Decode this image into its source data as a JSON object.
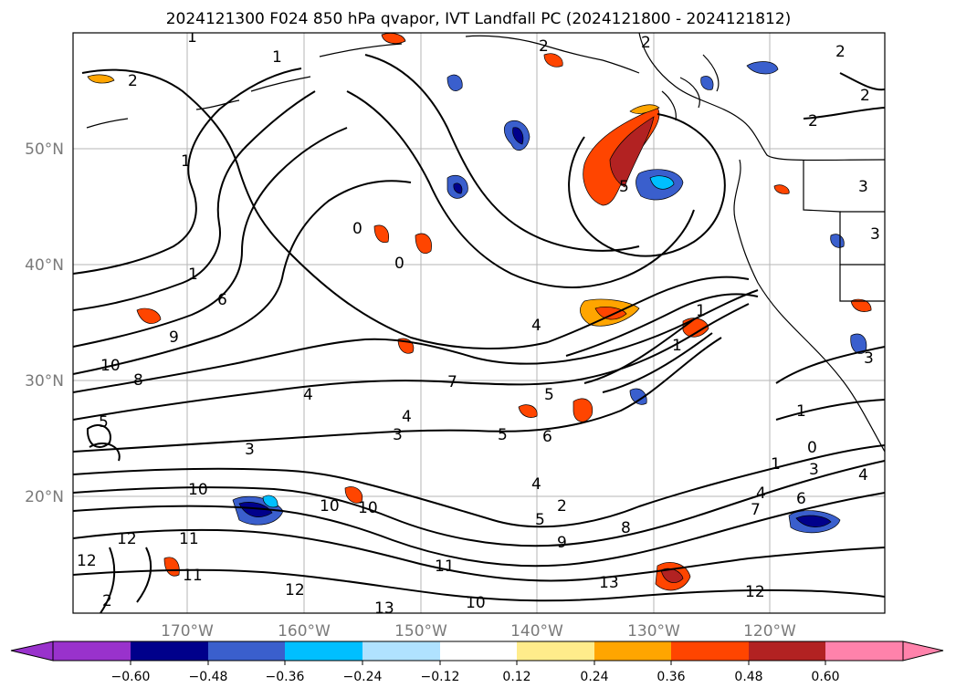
{
  "title": "2024121300 F024 850 hPa qvapor, IVT Landfall PC (2024121800 - 2024121812)",
  "lat_labels": [
    "50°N",
    "40°N",
    "30°N",
    "20°N"
  ],
  "lon_labels": [
    "170°W",
    "160°W",
    "150°W",
    "140°W",
    "130°W",
    "120°W"
  ],
  "colorbar": {
    "ticks": [
      "−0.60",
      "−0.48",
      "−0.36",
      "−0.24",
      "−0.12",
      "0.12",
      "0.24",
      "0.36",
      "0.48",
      "0.60"
    ],
    "colors": [
      "#9932cc",
      "#00008b",
      "#3a5fcd",
      "#00bfff",
      "#b0e2ff",
      "#ffffff",
      "#ffec8b",
      "#ffa500",
      "#ff4500",
      "#b22222",
      "#ff82ab"
    ]
  },
  "contour_labels": [
    "1",
    "2",
    "1",
    "2",
    "2",
    "2",
    "2",
    "2",
    "3",
    "1",
    "0",
    "0",
    "5",
    "1",
    "6",
    "9",
    "10",
    "8",
    "4",
    "7",
    "4",
    "5",
    "5",
    "1",
    "1",
    "0",
    "3",
    "6",
    "5",
    "4",
    "3",
    "10",
    "10",
    "10",
    "4",
    "2",
    "5",
    "8",
    "9",
    "1",
    "3",
    "4",
    "7",
    "6",
    "4",
    "12",
    "11",
    "11",
    "12",
    "13",
    "11",
    "10",
    "13",
    "12",
    "12",
    "2",
    "3",
    "1",
    "3"
  ]
}
